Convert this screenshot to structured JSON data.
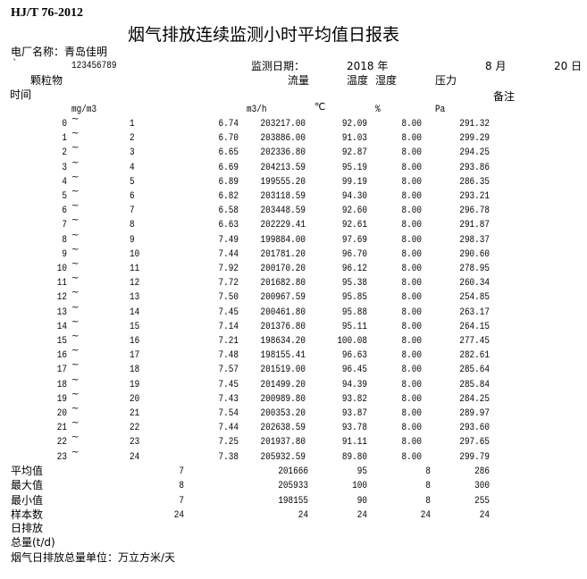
{
  "standard": "HJ/T 76-2012",
  "title": "烟气排放连续监测小时平均值日报表",
  "plant_label": "电厂名称：青岛佳明",
  "backtick": "`",
  "code": "123456789",
  "date": {
    "label": "监测日期：",
    "year": "2018 年",
    "month": "8 月",
    "day": "20 日"
  },
  "headers": {
    "pm": "颗粒物",
    "flow": "流量",
    "temp": "温度",
    "humidity": "湿度",
    "pressure": "压力",
    "time": "时间",
    "remark": "备注"
  },
  "units": {
    "pm": "mg/m3",
    "flow": "m3/h",
    "temp": "℃",
    "humidity": "%",
    "pressure": "Pa"
  },
  "tilde": "~",
  "rows": [
    [
      "0",
      "1",
      "6.74",
      "203217.00",
      "92.09",
      "8.00",
      "291.32"
    ],
    [
      "1",
      "2",
      "6.70",
      "203886.00",
      "91.03",
      "8.00",
      "299.29"
    ],
    [
      "2",
      "3",
      "6.65",
      "202336.80",
      "92.87",
      "8.00",
      "294.25"
    ],
    [
      "3",
      "4",
      "6.69",
      "204213.59",
      "95.19",
      "8.00",
      "293.86"
    ],
    [
      "4",
      "5",
      "6.89",
      "199555.20",
      "99.19",
      "8.00",
      "286.35"
    ],
    [
      "5",
      "6",
      "6.82",
      "203118.59",
      "94.30",
      "8.00",
      "293.21"
    ],
    [
      "6",
      "7",
      "6.58",
      "203448.59",
      "92.60",
      "8.00",
      "296.78"
    ],
    [
      "7",
      "8",
      "6.63",
      "202229.41",
      "92.61",
      "8.00",
      "291.87"
    ],
    [
      "8",
      "9",
      "7.49",
      "199884.00",
      "97.69",
      "8.00",
      "298.37"
    ],
    [
      "9",
      "10",
      "7.44",
      "201781.20",
      "96.70",
      "8.00",
      "290.60"
    ],
    [
      "10",
      "11",
      "7.92",
      "200170.20",
      "96.12",
      "8.00",
      "278.95"
    ],
    [
      "11",
      "12",
      "7.72",
      "201682.80",
      "95.38",
      "8.00",
      "260.34"
    ],
    [
      "12",
      "13",
      "7.50",
      "200967.59",
      "95.85",
      "8.00",
      "254.85"
    ],
    [
      "13",
      "14",
      "7.45",
      "200461.80",
      "95.88",
      "8.00",
      "263.17"
    ],
    [
      "14",
      "15",
      "7.14",
      "201376.80",
      "95.11",
      "8.00",
      "264.15"
    ],
    [
      "15",
      "16",
      "7.21",
      "198634.20",
      "100.08",
      "8.00",
      "277.45"
    ],
    [
      "16",
      "17",
      "7.48",
      "198155.41",
      "96.63",
      "8.00",
      "282.61"
    ],
    [
      "17",
      "18",
      "7.57",
      "201519.00",
      "96.45",
      "8.00",
      "285.64"
    ],
    [
      "18",
      "19",
      "7.45",
      "201499.20",
      "94.39",
      "8.00",
      "285.84"
    ],
    [
      "19",
      "20",
      "7.43",
      "200989.80",
      "93.82",
      "8.00",
      "284.25"
    ],
    [
      "20",
      "21",
      "7.54",
      "200353.20",
      "93.87",
      "8.00",
      "289.97"
    ],
    [
      "21",
      "22",
      "7.44",
      "202638.59",
      "93.78",
      "8.00",
      "293.60"
    ],
    [
      "22",
      "23",
      "7.25",
      "201937.80",
      "91.11",
      "8.00",
      "297.65"
    ],
    [
      "23",
      "24",
      "7.38",
      "205932.59",
      "89.80",
      "8.00",
      "299.79"
    ]
  ],
  "summary": [
    {
      "label": "平均值",
      "values": [
        "7",
        "201666",
        "95",
        "8",
        "286"
      ]
    },
    {
      "label": "最大值",
      "values": [
        "8",
        "205933",
        "100",
        "8",
        "300"
      ]
    },
    {
      "label": "最小值",
      "values": [
        "7",
        "198155",
        "90",
        "8",
        "255"
      ]
    },
    {
      "label": "样本数",
      "values": [
        "24",
        "24",
        "24",
        "24",
        "24"
      ]
    }
  ],
  "daily_label_1": "日排放",
  "daily_label_2": "总量(t/d)",
  "unit_note": "烟气日排放总量单位：万立方米/天"
}
